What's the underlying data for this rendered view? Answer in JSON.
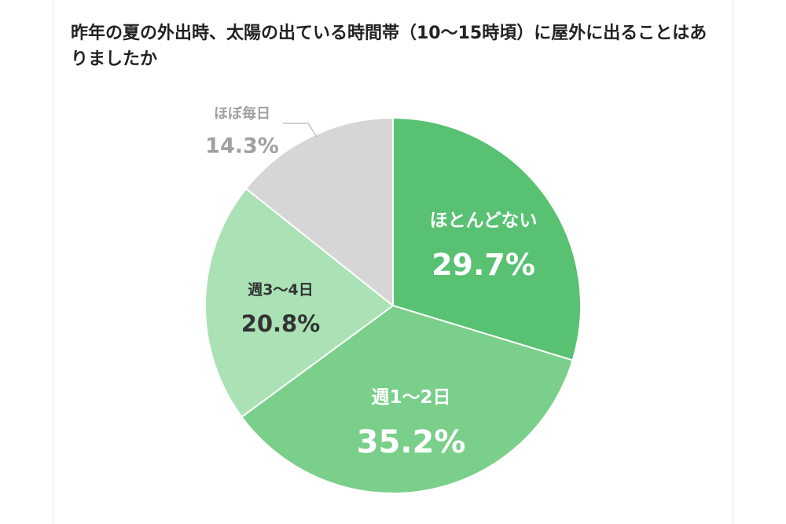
{
  "chart_data": {
    "type": "pie",
    "title": "昨年の夏の外出時、太陽の出ている時間帯（10〜15時頃）に屋外に出ることはありましたか",
    "unit": "%",
    "start_angle_deg": 0,
    "direction": "clockwise",
    "slices": [
      {
        "label": "ほとんどない",
        "value": 29.7,
        "display": "29.7%",
        "color": "#58c172",
        "text_color": "#ffffff",
        "label_position": "inside"
      },
      {
        "label": "週1〜2日",
        "value": 35.2,
        "display": "35.2%",
        "color": "#7acf8b",
        "text_color": "#ffffff",
        "label_position": "inside"
      },
      {
        "label": "週3〜4日",
        "value": 20.8,
        "display": "20.8%",
        "color": "#aae2b6",
        "text_color": "#333333",
        "label_position": "inside"
      },
      {
        "label": "ほぼ毎日",
        "value": 14.3,
        "display": "14.3%",
        "color": "#d6d6d6",
        "text_color": "#a0a0a0",
        "label_position": "outside"
      }
    ]
  }
}
